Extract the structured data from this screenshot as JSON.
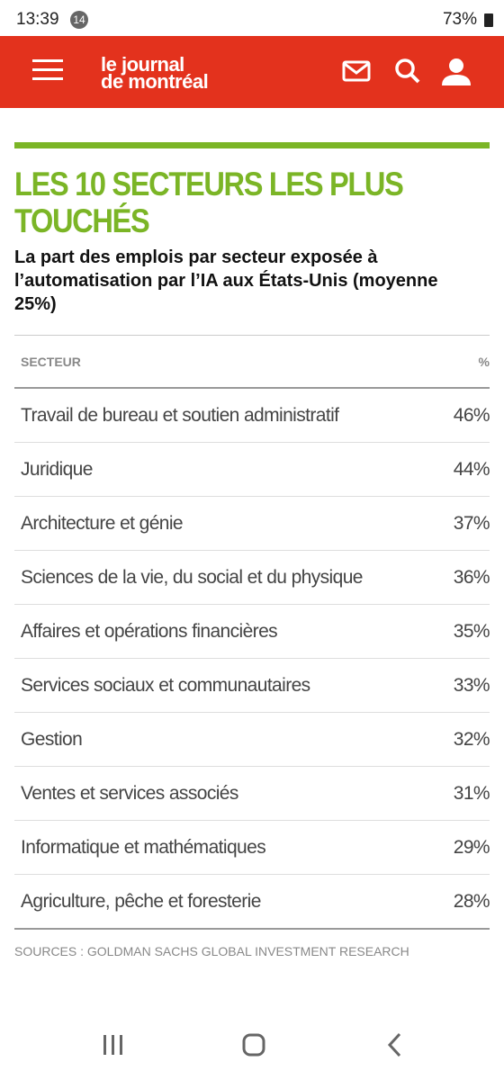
{
  "status_bar": {
    "time": "13:39",
    "badge": "14",
    "battery": "73%"
  },
  "header": {
    "logo": [
      "le journal",
      "de montréal"
    ]
  },
  "article": {
    "title": "LES 10 SECTEURS LES PLUS TOUCHÉS",
    "subtitle": "La part des emplois par secteur exposée à l’automatisation par l’IA aux États-Unis (moyenne 25%)"
  },
  "table": {
    "columns": [
      "SECTEUR",
      "%"
    ],
    "rows": [
      [
        "Travail de bureau et soutien administratif",
        "46%"
      ],
      [
        "Juridique",
        "44%"
      ],
      [
        "Architecture et génie",
        "37%"
      ],
      [
        "Sciences de la vie, du social et du physique",
        "36%"
      ],
      [
        "Affaires et opérations financières",
        "35%"
      ],
      [
        "Services sociaux et communautaires",
        "33%"
      ],
      [
        "Gestion",
        "32%"
      ],
      [
        "Ventes et services associés",
        "31%"
      ],
      [
        "Informatique et mathématiques",
        "29%"
      ],
      [
        "Agriculture, pêche et foresterie",
        "28%"
      ]
    ]
  },
  "source": "SOURCES : GOLDMAN SACHS GLOBAL INVESTMENT RESEARCH"
}
